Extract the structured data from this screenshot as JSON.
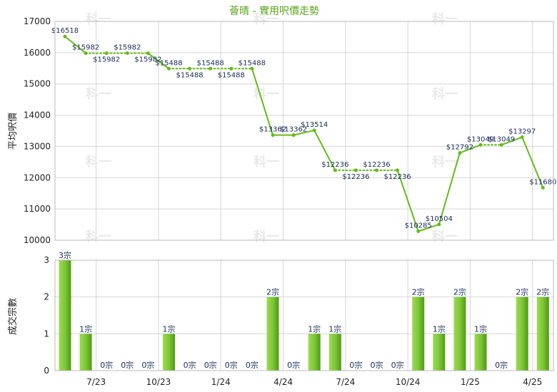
{
  "title": "薈晴 - 實用呎價走勢",
  "watermark": "科一",
  "chart_data": [
    {
      "type": "line",
      "ylabel": "平均呎價",
      "ylim": [
        10000,
        17000
      ],
      "yticks": [
        10000,
        11000,
        12000,
        13000,
        14000,
        15000,
        16000,
        17000
      ],
      "line_color": "#66bb1a",
      "values": [
        16518,
        15982,
        15982,
        15982,
        15982,
        15488,
        15488,
        15488,
        15488,
        15488,
        13362,
        13362,
        13514,
        12236,
        12236,
        12236,
        12236,
        10285,
        10504,
        12792,
        13049,
        13049,
        13297,
        11680
      ],
      "labels": [
        "$16518",
        "$15982",
        "$15982",
        "$15982",
        "$15982",
        "$15488",
        "$15488",
        "$15488",
        "$15488",
        "$15488",
        "$13362",
        "$13362",
        "$13514",
        "$12236",
        "$12236",
        "$12236",
        "$12236",
        "$10285",
        "$10504",
        "$12792",
        "$13049",
        "$13049",
        "$13297",
        "$11680"
      ],
      "dotted_segments": [
        [
          1,
          4
        ],
        [
          5,
          9
        ],
        [
          13,
          16
        ],
        [
          20,
          21
        ]
      ]
    },
    {
      "type": "bar",
      "ylabel": "成交宗數",
      "ylim": [
        0,
        3
      ],
      "yticks": [
        0,
        1,
        2,
        3
      ],
      "bar_color": "#7ec63a",
      "values": [
        3,
        1,
        0,
        0,
        0,
        1,
        0,
        0,
        0,
        0,
        2,
        0,
        1,
        1,
        0,
        0,
        0,
        2,
        1,
        2,
        1,
        0,
        2,
        2
      ],
      "labels": [
        "3宗",
        "1宗",
        "0宗",
        "0宗",
        "0宗",
        "1宗",
        "0宗",
        "0宗",
        "0宗",
        "0宗",
        "2宗",
        "0宗",
        "1宗",
        "1宗",
        "0宗",
        "0宗",
        "0宗",
        "2宗",
        "1宗",
        "2宗",
        "1宗",
        "0宗",
        "2宗",
        "2宗"
      ],
      "categories": [
        "7/23",
        "10/23",
        "1/24",
        "4/24",
        "7/24",
        "10/24",
        "1/25",
        "4/25"
      ],
      "category_index": [
        2,
        5,
        8,
        11,
        14,
        17,
        20,
        23
      ]
    }
  ]
}
